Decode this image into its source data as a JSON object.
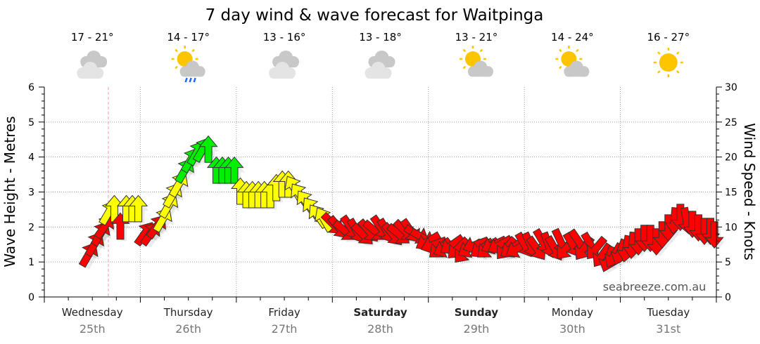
{
  "chart_data": {
    "type": "scatter",
    "title": "7 day wind & wave forecast for Waitpinga",
    "ylabel": "Wave Height - Metres",
    "y2label": "Wind Speed - Knots",
    "ylim": [
      0,
      6
    ],
    "y2lim": [
      0,
      30
    ],
    "yticks": [
      "0",
      "1",
      "2",
      "3",
      "4",
      "5",
      "6"
    ],
    "y2ticks": [
      "0",
      "5",
      "10",
      "15",
      "20",
      "25",
      "30"
    ],
    "grid": true,
    "watermark": "seabreeze.com.au",
    "current_time_hour": 16,
    "days": [
      {
        "name": "Wednesday",
        "date": "25th",
        "bold": false,
        "temp": "17 - 21°",
        "icon": "cloudy-icon"
      },
      {
        "name": "Thursday",
        "date": "26th",
        "bold": false,
        "temp": "14 - 17°",
        "icon": "sun-cloud-rain-icon"
      },
      {
        "name": "Friday",
        "date": "27th",
        "bold": false,
        "temp": "13 - 16°",
        "icon": "cloudy-icon"
      },
      {
        "name": "Saturday",
        "date": "28th",
        "bold": true,
        "temp": "13 - 18°",
        "icon": "cloudy-icon"
      },
      {
        "name": "Sunday",
        "date": "29th",
        "bold": true,
        "temp": "13 - 21°",
        "icon": "partly-cloudy-icon"
      },
      {
        "name": "Monday",
        "date": "30th",
        "bold": false,
        "temp": "14 - 24°",
        "icon": "partly-cloudy-icon"
      },
      {
        "name": "Tuesday",
        "date": "31st",
        "bold": false,
        "temp": "16 - 27°",
        "icon": "sunny-icon"
      }
    ],
    "colors": {
      "low": "#ff0000",
      "mid": "#ffff00",
      "high": "#00ee00",
      "outline": "#333333"
    },
    "wind_series_columns": [
      "hour",
      "knots",
      "direction_deg",
      "band"
    ],
    "wind_series": [
      [
        11,
        6,
        30,
        "low"
      ],
      [
        12.5,
        7.5,
        30,
        "low"
      ],
      [
        14,
        9,
        30,
        "low"
      ],
      [
        15,
        10,
        35,
        "low"
      ],
      [
        16,
        12,
        30,
        "mid"
      ],
      [
        17.5,
        12.5,
        0,
        "mid"
      ],
      [
        19,
        10,
        0,
        "low"
      ],
      [
        20.5,
        12.5,
        0,
        "mid"
      ],
      [
        22,
        12.5,
        0,
        "mid"
      ],
      [
        23.5,
        12.5,
        0,
        "mid"
      ],
      [
        25,
        9,
        35,
        "low"
      ],
      [
        26.5,
        9,
        35,
        "low"
      ],
      [
        28,
        10,
        35,
        "low"
      ],
      [
        29.5,
        11,
        30,
        "mid"
      ],
      [
        31,
        13,
        30,
        "mid"
      ],
      [
        32,
        14.5,
        30,
        "mid"
      ],
      [
        33.5,
        16,
        30,
        "mid"
      ],
      [
        35,
        18,
        30,
        "high"
      ],
      [
        36.5,
        19.5,
        30,
        "high"
      ],
      [
        38,
        20.5,
        30,
        "high"
      ],
      [
        39.5,
        21,
        30,
        "high"
      ],
      [
        41,
        21,
        0,
        "high"
      ],
      [
        43,
        18,
        0,
        "high"
      ],
      [
        44.5,
        18,
        0,
        "high"
      ],
      [
        46,
        18,
        0,
        "high"
      ],
      [
        47.5,
        18,
        0,
        "high"
      ],
      [
        49,
        15,
        0,
        "mid"
      ],
      [
        50.5,
        14.5,
        0,
        "mid"
      ],
      [
        52,
        14.5,
        0,
        "mid"
      ],
      [
        53.5,
        14.5,
        0,
        "mid"
      ],
      [
        55,
        14.5,
        0,
        "mid"
      ],
      [
        56.5,
        14.5,
        0,
        "mid"
      ],
      [
        58,
        15.5,
        0,
        "mid"
      ],
      [
        59.5,
        16,
        0,
        "mid"
      ],
      [
        61,
        16,
        0,
        "mid"
      ],
      [
        62.5,
        15.5,
        -30,
        "mid"
      ],
      [
        64,
        14.5,
        -35,
        "mid"
      ],
      [
        65.5,
        13.5,
        -35,
        "mid"
      ],
      [
        67,
        12.5,
        -35,
        "mid"
      ],
      [
        68.5,
        11.5,
        -35,
        "mid"
      ],
      [
        70,
        11,
        -30,
        "mid"
      ],
      [
        72,
        10.5,
        135,
        "low"
      ],
      [
        73.5,
        10,
        140,
        "low"
      ],
      [
        75,
        9.5,
        130,
        "low"
      ],
      [
        76.5,
        10,
        145,
        "low"
      ],
      [
        78,
        9.5,
        150,
        "low"
      ],
      [
        79.5,
        9,
        135,
        "low"
      ],
      [
        81,
        9.5,
        140,
        "low"
      ],
      [
        82.5,
        9.5,
        130,
        "low"
      ],
      [
        84,
        10,
        145,
        "low"
      ],
      [
        85.5,
        9.5,
        150,
        "low"
      ],
      [
        87,
        9,
        140,
        "low"
      ],
      [
        88.5,
        9,
        130,
        "low"
      ],
      [
        90,
        9.5,
        135,
        "low"
      ],
      [
        91.5,
        9.5,
        145,
        "low"
      ],
      [
        93,
        9,
        120,
        "low"
      ],
      [
        94.5,
        8.5,
        120,
        "low"
      ],
      [
        96,
        8,
        240,
        "low"
      ],
      [
        97.5,
        7.5,
        250,
        "low"
      ],
      [
        99,
        7,
        230,
        "low"
      ],
      [
        100.5,
        7,
        245,
        "low"
      ],
      [
        102,
        7.5,
        235,
        "low"
      ],
      [
        103.5,
        7,
        225,
        "low"
      ],
      [
        105,
        6.5,
        220,
        "low"
      ],
      [
        106.5,
        7,
        240,
        "low"
      ],
      [
        108,
        7.5,
        250,
        "low"
      ],
      [
        109.5,
        7,
        235,
        "low"
      ],
      [
        111,
        7,
        230,
        "low"
      ],
      [
        112.5,
        7.5,
        245,
        "low"
      ],
      [
        114,
        7.5,
        240,
        "low"
      ],
      [
        115.5,
        7,
        220,
        "low"
      ],
      [
        117,
        7,
        235,
        "low"
      ],
      [
        118.5,
        7,
        240,
        "low"
      ],
      [
        120,
        7.5,
        150,
        "low"
      ],
      [
        121.5,
        7.5,
        155,
        "low"
      ],
      [
        123,
        7,
        145,
        "low"
      ],
      [
        124.5,
        8,
        150,
        "low"
      ],
      [
        126,
        7.5,
        160,
        "low"
      ],
      [
        127.5,
        7,
        150,
        "low"
      ],
      [
        129,
        8,
        155,
        "low"
      ],
      [
        130.5,
        7,
        220,
        "low"
      ],
      [
        132,
        7.5,
        150,
        "low"
      ],
      [
        133.5,
        8,
        145,
        "low"
      ],
      [
        135,
        7,
        215,
        "low"
      ],
      [
        136.5,
        7.5,
        150,
        "low"
      ],
      [
        138,
        7,
        220,
        "low"
      ],
      [
        139.5,
        6,
        215,
        "low"
      ],
      [
        141,
        5.5,
        200,
        "low"
      ],
      [
        142.5,
        6,
        210,
        "low"
      ],
      [
        144,
        6.5,
        200,
        "low"
      ],
      [
        145.5,
        7,
        190,
        "low"
      ],
      [
        147,
        7.5,
        185,
        "low"
      ],
      [
        148.5,
        8,
        180,
        "low"
      ],
      [
        150,
        8.5,
        180,
        "low"
      ],
      [
        151.5,
        8.5,
        180,
        "low"
      ],
      [
        153,
        8,
        180,
        "low"
      ],
      [
        154.5,
        9,
        180,
        "low"
      ],
      [
        156,
        10,
        180,
        "low"
      ],
      [
        157.5,
        11,
        185,
        "low"
      ],
      [
        159,
        11.5,
        180,
        "low"
      ],
      [
        160.5,
        11,
        170,
        "low"
      ],
      [
        162,
        10.5,
        180,
        "low"
      ],
      [
        163.5,
        10,
        180,
        "low"
      ],
      [
        165,
        9.5,
        180,
        "low"
      ],
      [
        166.5,
        9.5,
        180,
        "low"
      ],
      [
        167.5,
        9,
        180,
        "low"
      ]
    ]
  }
}
